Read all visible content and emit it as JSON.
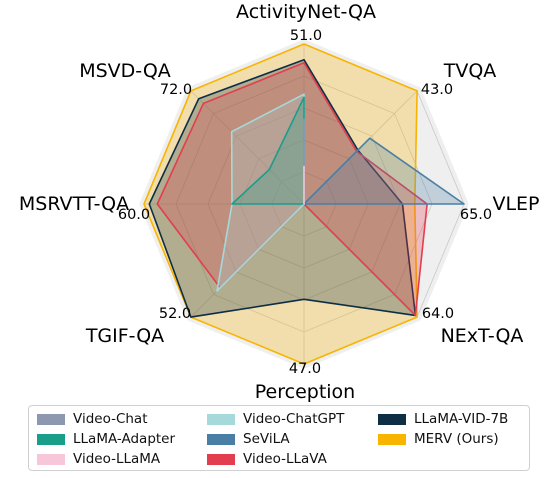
{
  "chart_data": {
    "type": "radar",
    "axes": [
      {
        "label": "ActivityNet-QA",
        "max": 51.0,
        "max_label": "51.0"
      },
      {
        "label": "TVQA",
        "max": 43.0,
        "max_label": "43.0"
      },
      {
        "label": "VLEP",
        "max": 65.0,
        "max_label": "65.0"
      },
      {
        "label": "NExT-QA",
        "max": 64.0,
        "max_label": "64.0"
      },
      {
        "label": "Perception",
        "max": 47.0,
        "max_label": "47.0"
      },
      {
        "label": "TGIF-QA",
        "max": 52.0,
        "max_label": "52.0"
      },
      {
        "label": "MSRVTT-QA",
        "max": 60.0,
        "max_label": "60.0"
      },
      {
        "label": "MSVD-QA",
        "max": 72.0,
        "max_label": "72.0"
      }
    ],
    "series": [
      {
        "name": "Video-Chat",
        "color": "#8c98b0",
        "values": [
          27.0,
          0,
          0,
          0,
          0,
          0,
          0,
          0
        ]
      },
      {
        "name": "LLaMA-Adapter",
        "color": "#1a9e8a",
        "values": [
          34.0,
          0,
          0,
          0,
          0,
          0,
          27.0,
          22.0
        ]
      },
      {
        "name": "Video-LLaMA",
        "color": "#f7c6d8",
        "values": [
          12.0,
          0,
          0,
          0,
          0,
          0,
          0,
          0
        ]
      },
      {
        "name": "Video-ChatGPT",
        "color": "#a6d9d9",
        "values": [
          35.0,
          0,
          0,
          0,
          0,
          40.0,
          27.0,
          46.0
        ]
      },
      {
        "name": "SeViLA",
        "color": "#4a7fa5",
        "values": [
          0,
          25.0,
          65.0,
          0,
          0,
          0,
          0,
          0
        ]
      },
      {
        "name": "Video-LLaVA",
        "color": "#e23e4f",
        "values": [
          45.0,
          20.0,
          50.0,
          63.0,
          0,
          38.5,
          55.0,
          64.0
        ]
      },
      {
        "name": "LLaMA-VID-7B",
        "color": "#0e2e45",
        "values": [
          46.0,
          20.5,
          40.0,
          63.0,
          28.0,
          52.0,
          58.0,
          67.0
        ]
      },
      {
        "name": "MERV (Ours)",
        "color": "#f7b500",
        "values": [
          51.0,
          43.0,
          45.0,
          64.0,
          47.0,
          52.0,
          60.0,
          72.0
        ]
      }
    ]
  }
}
